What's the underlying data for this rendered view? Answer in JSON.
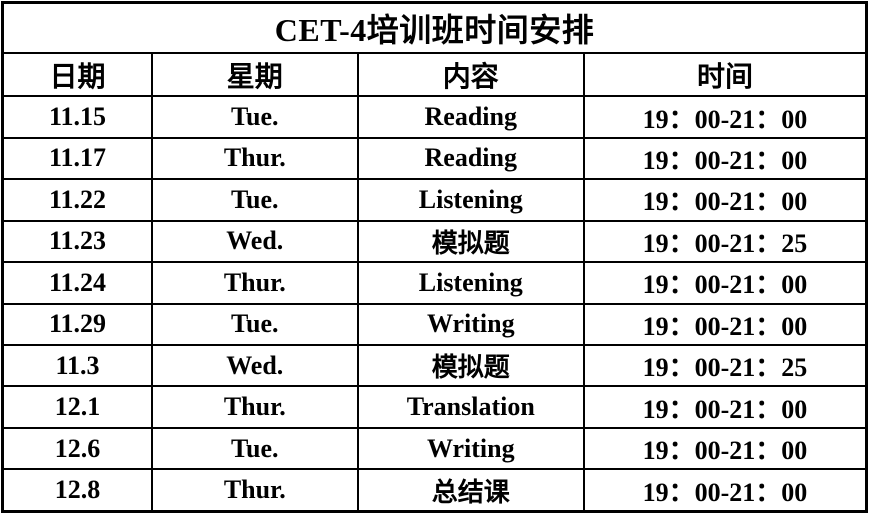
{
  "title": "CET-4培训班时间安排",
  "table": {
    "headers": {
      "date": "日期",
      "day": "星期",
      "content": "内容",
      "time": "时间"
    },
    "rows": [
      {
        "date": "11.15",
        "day": "Tue.",
        "content": "Reading",
        "time": "19：00-21：00"
      },
      {
        "date": "11.17",
        "day": "Thur.",
        "content": "Reading",
        "time": "19：00-21：00"
      },
      {
        "date": "11.22",
        "day": "Tue.",
        "content": "Listening",
        "time": "19：00-21：00"
      },
      {
        "date": "11.23",
        "day": "Wed.",
        "content": "模拟题",
        "time": "19：00-21：25"
      },
      {
        "date": "11.24",
        "day": "Thur.",
        "content": "Listening",
        "time": "19：00-21：00"
      },
      {
        "date": "11.29",
        "day": "Tue.",
        "content": "Writing",
        "time": "19：00-21：00"
      },
      {
        "date": "11.3",
        "day": "Wed.",
        "content": "模拟题",
        "time": "19：00-21：25"
      },
      {
        "date": "12.1",
        "day": "Thur.",
        "content": "Translation",
        "time": "19：00-21：00"
      },
      {
        "date": "12.6",
        "day": "Tue.",
        "content": "Writing",
        "time": "19：00-21：00"
      },
      {
        "date": "12.8",
        "day": "Thur.",
        "content": "总结课",
        "time": "19：00-21：00"
      }
    ]
  },
  "colors": {
    "border": "#000000",
    "text": "#000000",
    "background": "#ffffff"
  }
}
